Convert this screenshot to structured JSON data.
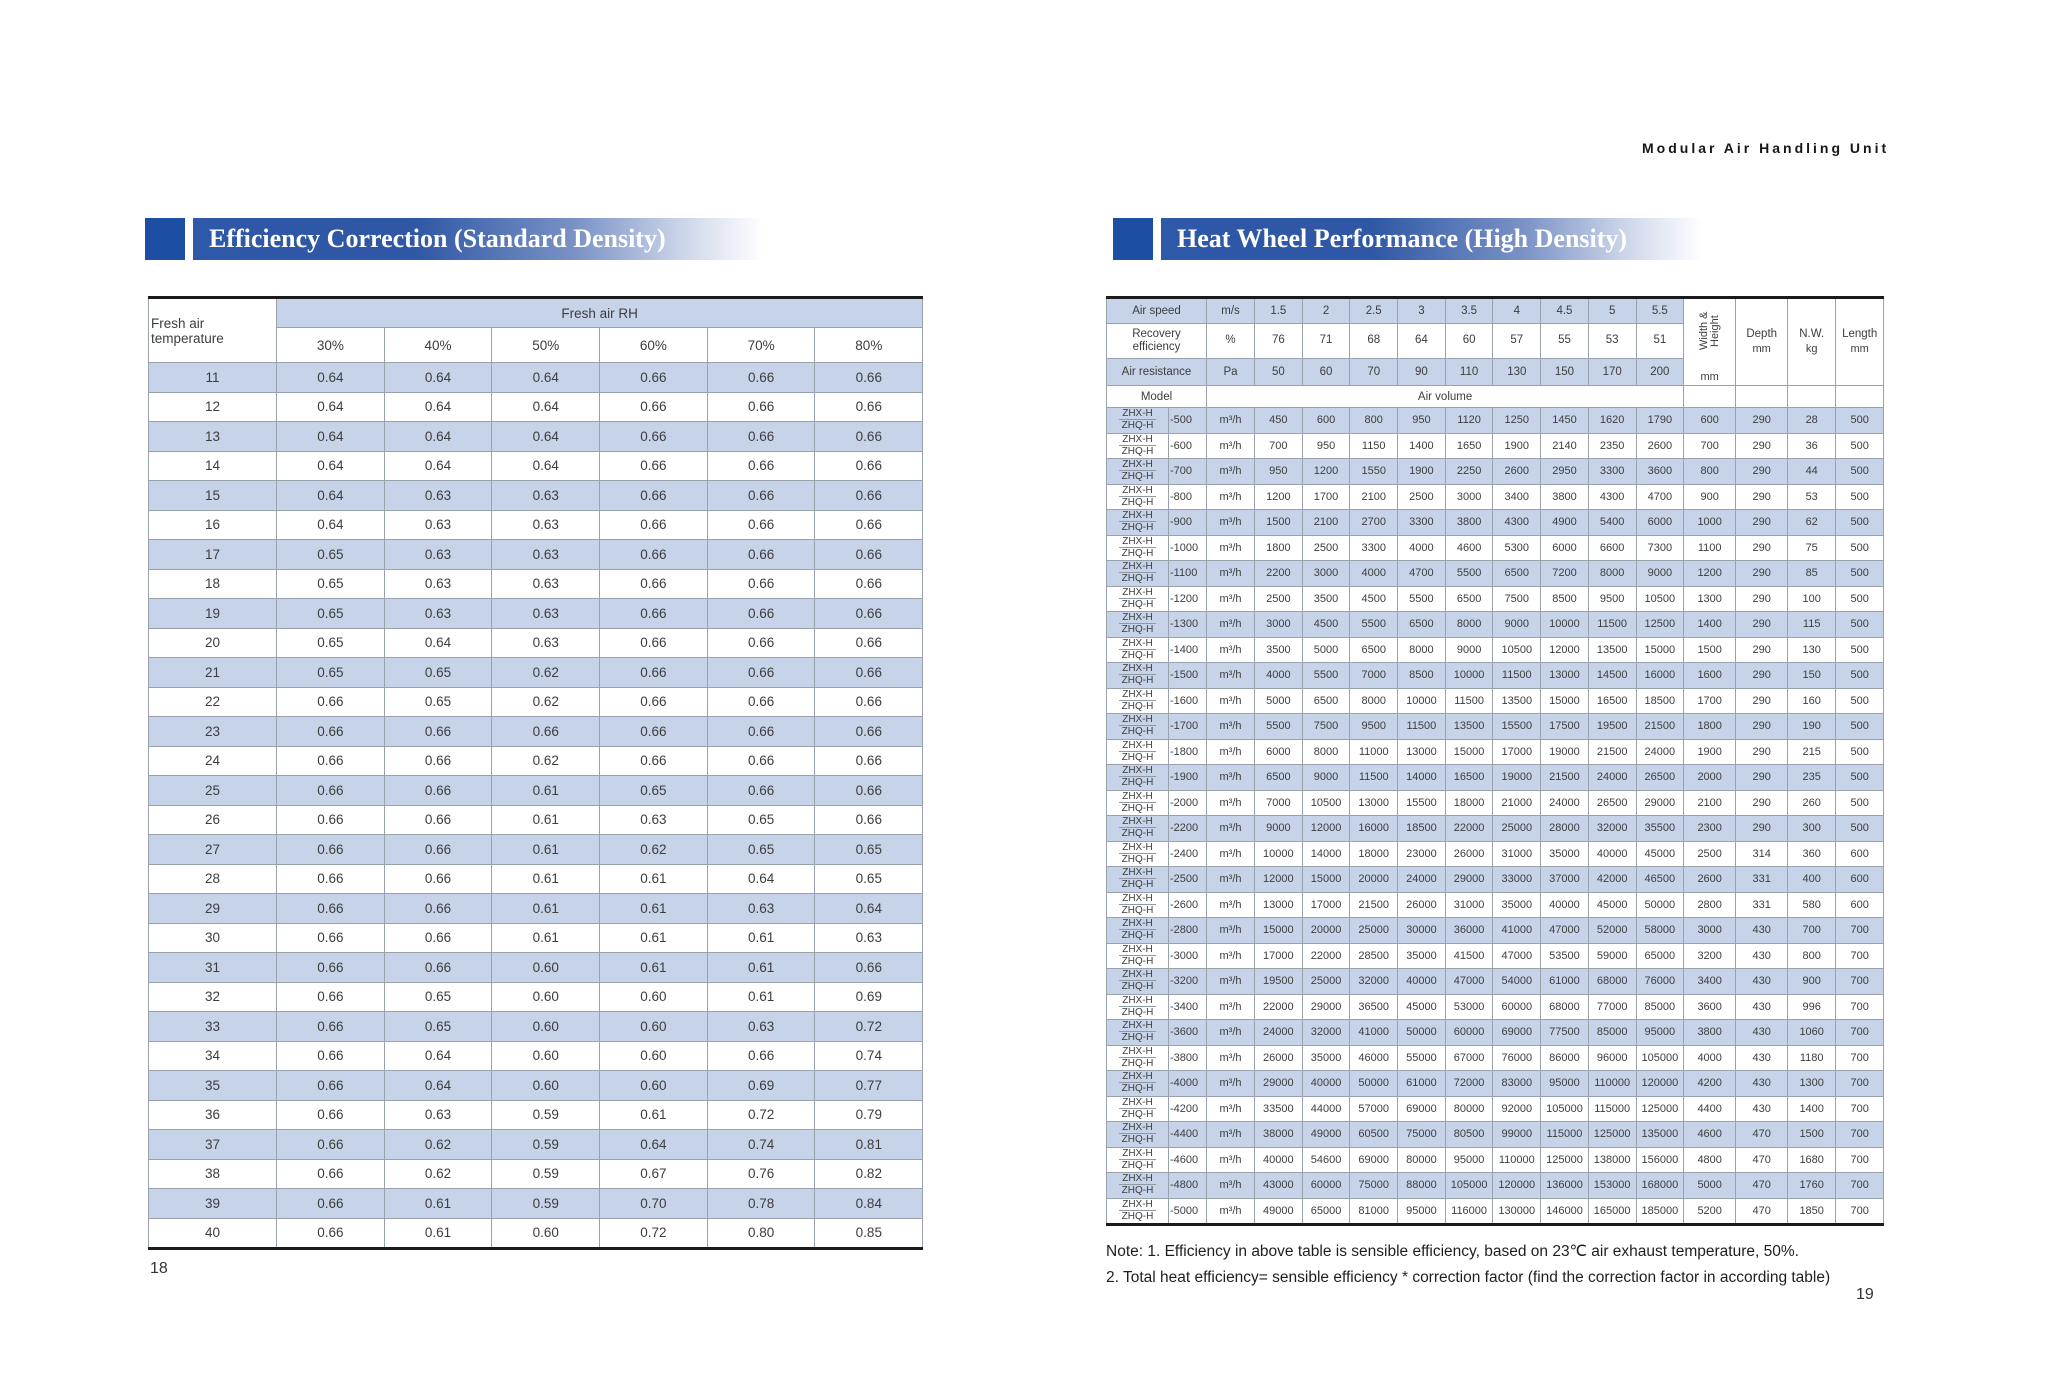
{
  "page": {
    "header_title": "Modular Air Handling Unit",
    "left_page_number": "18",
    "right_page_number": "19",
    "colors": {
      "accent_blue": "#1c4fa4",
      "row_blue": "#c6d3e9"
    }
  },
  "left_section": {
    "title": "Efficiency Correction (Standard Density)",
    "table": {
      "corner_header": "Fresh air temperature",
      "group_header": "Fresh air RH",
      "column_headers": [
        "30%",
        "40%",
        "50%",
        "60%",
        "70%",
        "80%"
      ],
      "rows": [
        [
          "11",
          "0.64",
          "0.64",
          "0.64",
          "0.66",
          "0.66",
          "0.66"
        ],
        [
          "12",
          "0.64",
          "0.64",
          "0.64",
          "0.66",
          "0.66",
          "0.66"
        ],
        [
          "13",
          "0.64",
          "0.64",
          "0.64",
          "0.66",
          "0.66",
          "0.66"
        ],
        [
          "14",
          "0.64",
          "0.64",
          "0.64",
          "0.66",
          "0.66",
          "0.66"
        ],
        [
          "15",
          "0.64",
          "0.63",
          "0.63",
          "0.66",
          "0.66",
          "0.66"
        ],
        [
          "16",
          "0.64",
          "0.63",
          "0.63",
          "0.66",
          "0.66",
          "0.66"
        ],
        [
          "17",
          "0.65",
          "0.63",
          "0.63",
          "0.66",
          "0.66",
          "0.66"
        ],
        [
          "18",
          "0.65",
          "0.63",
          "0.63",
          "0.66",
          "0.66",
          "0.66"
        ],
        [
          "19",
          "0.65",
          "0.63",
          "0.63",
          "0.66",
          "0.66",
          "0.66"
        ],
        [
          "20",
          "0.65",
          "0.64",
          "0.63",
          "0.66",
          "0.66",
          "0.66"
        ],
        [
          "21",
          "0.65",
          "0.65",
          "0.62",
          "0.66",
          "0.66",
          "0.66"
        ],
        [
          "22",
          "0.66",
          "0.65",
          "0.62",
          "0.66",
          "0.66",
          "0.66"
        ],
        [
          "23",
          "0.66",
          "0.66",
          "0.66",
          "0.66",
          "0.66",
          "0.66"
        ],
        [
          "24",
          "0.66",
          "0.66",
          "0.62",
          "0.66",
          "0.66",
          "0.66"
        ],
        [
          "25",
          "0.66",
          "0.66",
          "0.61",
          "0.65",
          "0.66",
          "0.66"
        ],
        [
          "26",
          "0.66",
          "0.66",
          "0.61",
          "0.63",
          "0.65",
          "0.66"
        ],
        [
          "27",
          "0.66",
          "0.66",
          "0.61",
          "0.62",
          "0.65",
          "0.65"
        ],
        [
          "28",
          "0.66",
          "0.66",
          "0.61",
          "0.61",
          "0.64",
          "0.65"
        ],
        [
          "29",
          "0.66",
          "0.66",
          "0.61",
          "0.61",
          "0.63",
          "0.64"
        ],
        [
          "30",
          "0.66",
          "0.66",
          "0.61",
          "0.61",
          "0.61",
          "0.63"
        ],
        [
          "31",
          "0.66",
          "0.66",
          "0.60",
          "0.61",
          "0.61",
          "0.66"
        ],
        [
          "32",
          "0.66",
          "0.65",
          "0.60",
          "0.60",
          "0.61",
          "0.69"
        ],
        [
          "33",
          "0.66",
          "0.65",
          "0.60",
          "0.60",
          "0.63",
          "0.72"
        ],
        [
          "34",
          "0.66",
          "0.64",
          "0.60",
          "0.60",
          "0.66",
          "0.74"
        ],
        [
          "35",
          "0.66",
          "0.64",
          "0.60",
          "0.60",
          "0.69",
          "0.77"
        ],
        [
          "36",
          "0.66",
          "0.63",
          "0.59",
          "0.61",
          "0.72",
          "0.79"
        ],
        [
          "37",
          "0.66",
          "0.62",
          "0.59",
          "0.64",
          "0.74",
          "0.81"
        ],
        [
          "38",
          "0.66",
          "0.62",
          "0.59",
          "0.67",
          "0.76",
          "0.82"
        ],
        [
          "39",
          "0.66",
          "0.61",
          "0.59",
          "0.70",
          "0.78",
          "0.84"
        ],
        [
          "40",
          "0.66",
          "0.61",
          "0.60",
          "0.72",
          "0.80",
          "0.85"
        ]
      ]
    }
  },
  "right_section": {
    "title": "Heat Wheel Performance (High Density)",
    "table": {
      "header_rows": [
        {
          "label": "Air speed",
          "unit": "m/s",
          "values": [
            "1.5",
            "2",
            "2.5",
            "3",
            "3.5",
            "4",
            "4.5",
            "5",
            "5.5"
          ]
        },
        {
          "label": "Recovery efficiency",
          "unit": "%",
          "values": [
            "76",
            "71",
            "68",
            "64",
            "60",
            "57",
            "55",
            "53",
            "51"
          ]
        },
        {
          "label": "Air resistance",
          "unit": "Pa",
          "values": [
            "50",
            "60",
            "70",
            "90",
            "110",
            "130",
            "150",
            "170",
            "200"
          ]
        }
      ],
      "spec_headers": [
        {
          "label": "Width &\nHeight",
          "unit": "mm",
          "vertical": true
        },
        {
          "label": "Depth",
          "unit": "mm"
        },
        {
          "label": "N.W.",
          "unit": "kg"
        },
        {
          "label": "Length",
          "unit": "mm"
        }
      ],
      "model_header": "Model",
      "air_volume_header": "Air volume",
      "model_prefixes": [
        "ZHX-H",
        "ZHQ-H"
      ],
      "volume_unit": "m³/h",
      "rows": [
        [
          "-500",
          "450",
          "600",
          "800",
          "950",
          "1120",
          "1250",
          "1450",
          "1620",
          "1790",
          "600",
          "290",
          "28",
          "500"
        ],
        [
          "-600",
          "700",
          "950",
          "1150",
          "1400",
          "1650",
          "1900",
          "2140",
          "2350",
          "2600",
          "700",
          "290",
          "36",
          "500"
        ],
        [
          "-700",
          "950",
          "1200",
          "1550",
          "1900",
          "2250",
          "2600",
          "2950",
          "3300",
          "3600",
          "800",
          "290",
          "44",
          "500"
        ],
        [
          "-800",
          "1200",
          "1700",
          "2100",
          "2500",
          "3000",
          "3400",
          "3800",
          "4300",
          "4700",
          "900",
          "290",
          "53",
          "500"
        ],
        [
          "-900",
          "1500",
          "2100",
          "2700",
          "3300",
          "3800",
          "4300",
          "4900",
          "5400",
          "6000",
          "1000",
          "290",
          "62",
          "500"
        ],
        [
          "-1000",
          "1800",
          "2500",
          "3300",
          "4000",
          "4600",
          "5300",
          "6000",
          "6600",
          "7300",
          "1100",
          "290",
          "75",
          "500"
        ],
        [
          "-1100",
          "2200",
          "3000",
          "4000",
          "4700",
          "5500",
          "6500",
          "7200",
          "8000",
          "9000",
          "1200",
          "290",
          "85",
          "500"
        ],
        [
          "-1200",
          "2500",
          "3500",
          "4500",
          "5500",
          "6500",
          "7500",
          "8500",
          "9500",
          "10500",
          "1300",
          "290",
          "100",
          "500"
        ],
        [
          "-1300",
          "3000",
          "4500",
          "5500",
          "6500",
          "8000",
          "9000",
          "10000",
          "11500",
          "12500",
          "1400",
          "290",
          "115",
          "500"
        ],
        [
          "-1400",
          "3500",
          "5000",
          "6500",
          "8000",
          "9000",
          "10500",
          "12000",
          "13500",
          "15000",
          "1500",
          "290",
          "130",
          "500"
        ],
        [
          "-1500",
          "4000",
          "5500",
          "7000",
          "8500",
          "10000",
          "11500",
          "13000",
          "14500",
          "16000",
          "1600",
          "290",
          "150",
          "500"
        ],
        [
          "-1600",
          "5000",
          "6500",
          "8000",
          "10000",
          "11500",
          "13500",
          "15000",
          "16500",
          "18500",
          "1700",
          "290",
          "160",
          "500"
        ],
        [
          "-1700",
          "5500",
          "7500",
          "9500",
          "11500",
          "13500",
          "15500",
          "17500",
          "19500",
          "21500",
          "1800",
          "290",
          "190",
          "500"
        ],
        [
          "-1800",
          "6000",
          "8000",
          "11000",
          "13000",
          "15000",
          "17000",
          "19000",
          "21500",
          "24000",
          "1900",
          "290",
          "215",
          "500"
        ],
        [
          "-1900",
          "6500",
          "9000",
          "11500",
          "14000",
          "16500",
          "19000",
          "21500",
          "24000",
          "26500",
          "2000",
          "290",
          "235",
          "500"
        ],
        [
          "-2000",
          "7000",
          "10500",
          "13000",
          "15500",
          "18000",
          "21000",
          "24000",
          "26500",
          "29000",
          "2100",
          "290",
          "260",
          "500"
        ],
        [
          "-2200",
          "9000",
          "12000",
          "16000",
          "18500",
          "22000",
          "25000",
          "28000",
          "32000",
          "35500",
          "2300",
          "290",
          "300",
          "500"
        ],
        [
          "-2400",
          "10000",
          "14000",
          "18000",
          "23000",
          "26000",
          "31000",
          "35000",
          "40000",
          "45000",
          "2500",
          "314",
          "360",
          "600"
        ],
        [
          "-2500",
          "12000",
          "15000",
          "20000",
          "24000",
          "29000",
          "33000",
          "37000",
          "42000",
          "46500",
          "2600",
          "331",
          "400",
          "600"
        ],
        [
          "-2600",
          "13000",
          "17000",
          "21500",
          "26000",
          "31000",
          "35000",
          "40000",
          "45000",
          "50000",
          "2800",
          "331",
          "580",
          "600"
        ],
        [
          "-2800",
          "15000",
          "20000",
          "25000",
          "30000",
          "36000",
          "41000",
          "47000",
          "52000",
          "58000",
          "3000",
          "430",
          "700",
          "700"
        ],
        [
          "-3000",
          "17000",
          "22000",
          "28500",
          "35000",
          "41500",
          "47000",
          "53500",
          "59000",
          "65000",
          "3200",
          "430",
          "800",
          "700"
        ],
        [
          "-3200",
          "19500",
          "25000",
          "32000",
          "40000",
          "47000",
          "54000",
          "61000",
          "68000",
          "76000",
          "3400",
          "430",
          "900",
          "700"
        ],
        [
          "-3400",
          "22000",
          "29000",
          "36500",
          "45000",
          "53000",
          "60000",
          "68000",
          "77000",
          "85000",
          "3600",
          "430",
          "996",
          "700"
        ],
        [
          "-3600",
          "24000",
          "32000",
          "41000",
          "50000",
          "60000",
          "69000",
          "77500",
          "85000",
          "95000",
          "3800",
          "430",
          "1060",
          "700"
        ],
        [
          "-3800",
          "26000",
          "35000",
          "46000",
          "55000",
          "67000",
          "76000",
          "86000",
          "96000",
          "105000",
          "4000",
          "430",
          "1180",
          "700"
        ],
        [
          "-4000",
          "29000",
          "40000",
          "50000",
          "61000",
          "72000",
          "83000",
          "95000",
          "110000",
          "120000",
          "4200",
          "430",
          "1300",
          "700"
        ],
        [
          "-4200",
          "33500",
          "44000",
          "57000",
          "69000",
          "80000",
          "92000",
          "105000",
          "115000",
          "125000",
          "4400",
          "430",
          "1400",
          "700"
        ],
        [
          "-4400",
          "38000",
          "49000",
          "60500",
          "75000",
          "80500",
          "99000",
          "115000",
          "125000",
          "135000",
          "4600",
          "470",
          "1500",
          "700"
        ],
        [
          "-4600",
          "40000",
          "54600",
          "69000",
          "80000",
          "95000",
          "110000",
          "125000",
          "138000",
          "156000",
          "4800",
          "470",
          "1680",
          "700"
        ],
        [
          "-4800",
          "43000",
          "60000",
          "75000",
          "88000",
          "105000",
          "120000",
          "136000",
          "153000",
          "168000",
          "5000",
          "470",
          "1760",
          "700"
        ],
        [
          "-5000",
          "49000",
          "65000",
          "81000",
          "95000",
          "116000",
          "130000",
          "146000",
          "165000",
          "185000",
          "5200",
          "470",
          "1850",
          "700"
        ]
      ]
    },
    "notes": [
      "Note: 1. Efficiency in above table is sensible efficiency, based on 23℃ air exhaust temperature, 50%.",
      "2. Total heat efficiency= sensible efficiency * correction factor (find the correction factor in according table)"
    ]
  }
}
